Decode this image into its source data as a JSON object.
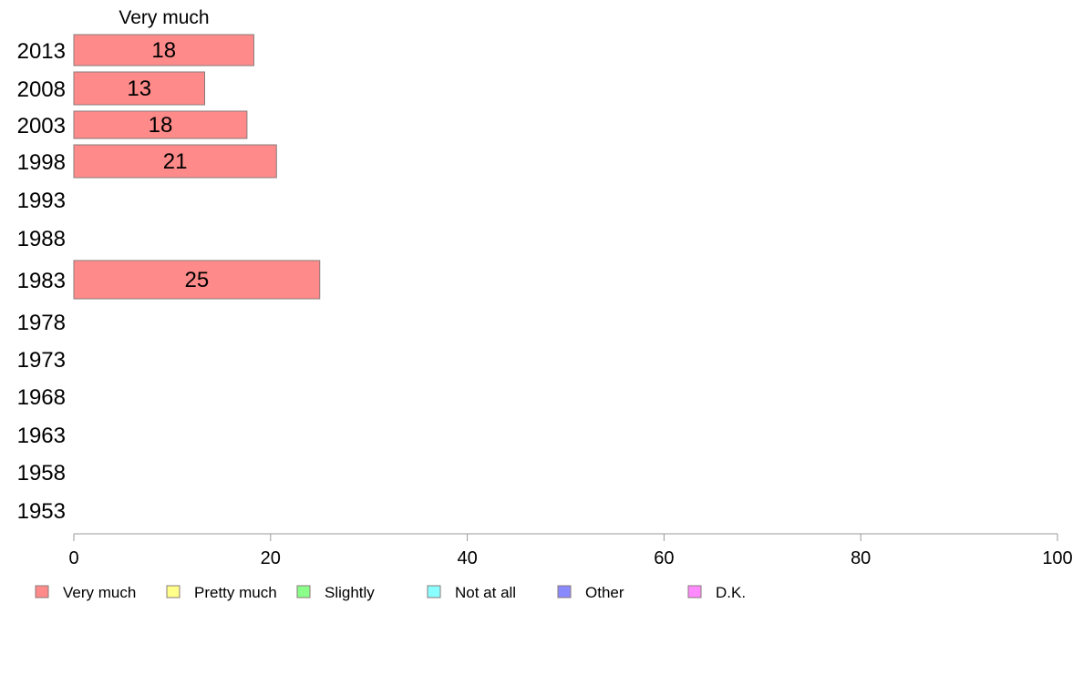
{
  "chart_data": {
    "type": "bar",
    "orientation": "horizontal",
    "stacked": true,
    "categories": [
      "2013",
      "2008",
      "2003",
      "1998",
      "1993",
      "1988",
      "1983",
      "1978",
      "1973",
      "1968",
      "1963",
      "1958",
      "1953"
    ],
    "series": [
      {
        "name": "Very much",
        "color": "#ff8a8a",
        "values": [
          18.3,
          13.3,
          17.6,
          20.6,
          null,
          null,
          25,
          null,
          null,
          null,
          null,
          null,
          null
        ],
        "labels": [
          "18",
          "13",
          "18",
          "21",
          "",
          "",
          "25",
          "",
          "",
          "",
          "",
          "",
          ""
        ]
      },
      {
        "name": "Pretty much",
        "color": "#ffff8a",
        "values": [
          null,
          null,
          null,
          null,
          null,
          null,
          null,
          null,
          null,
          null,
          null,
          null,
          null
        ]
      },
      {
        "name": "Slightly",
        "color": "#8aff8a",
        "values": [
          null,
          null,
          null,
          null,
          null,
          null,
          null,
          null,
          null,
          null,
          null,
          null,
          null
        ]
      },
      {
        "name": "Not at all",
        "color": "#8affff",
        "values": [
          null,
          null,
          null,
          null,
          null,
          null,
          null,
          null,
          null,
          null,
          null,
          null,
          null
        ]
      },
      {
        "name": "Other",
        "color": "#8a8aff",
        "values": [
          null,
          null,
          null,
          null,
          null,
          null,
          null,
          null,
          null,
          null,
          null,
          null,
          null
        ]
      },
      {
        "name": "D.K.",
        "color": "#ff8aff",
        "values": [
          null,
          null,
          null,
          null,
          null,
          null,
          null,
          null,
          null,
          null,
          null,
          null,
          null
        ]
      }
    ],
    "column_header": "Very much",
    "xlim": [
      0,
      100
    ],
    "x_ticks": [
      "0",
      "20",
      "40",
      "60",
      "80",
      "100"
    ],
    "grid": false,
    "legend_position": "bottom"
  }
}
